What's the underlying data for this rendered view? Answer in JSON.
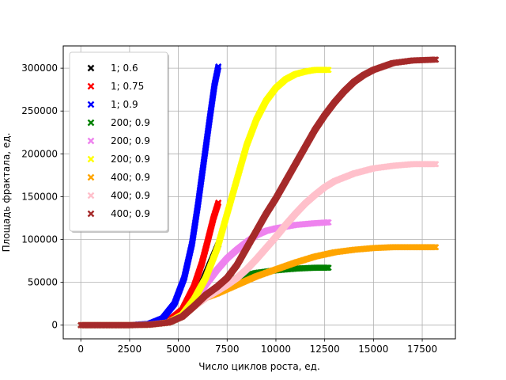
{
  "chart_data": {
    "type": "scatter",
    "xlabel": "Число циклов роста, ед.",
    "ylabel": "Площадь фрактала, ед.",
    "xlim": [
      -900,
      19200
    ],
    "ylim": [
      -16000,
      326000
    ],
    "xticks": [
      0,
      2500,
      5000,
      7500,
      10000,
      12500,
      15000,
      17500
    ],
    "yticks": [
      0,
      50000,
      100000,
      150000,
      200000,
      250000,
      300000
    ],
    "xtick_labels": [
      "0",
      "2500",
      "5000",
      "7500",
      "10000",
      "12500",
      "15000",
      "17500"
    ],
    "ytick_labels": [
      "0",
      "50000",
      "100000",
      "150000",
      "200000",
      "250000",
      "300000"
    ],
    "grid": true,
    "legend_position": "upper-left",
    "marker": "x",
    "series": [
      {
        "name": "1; 0.6",
        "color": "#000000",
        "points": [
          [
            0,
            0
          ],
          [
            2500,
            0
          ],
          [
            3500,
            500
          ],
          [
            4500,
            3000
          ],
          [
            5200,
            10000
          ],
          [
            5800,
            28000
          ],
          [
            6200,
            48000
          ],
          [
            6600,
            70000
          ],
          [
            6900,
            86000
          ],
          [
            7050,
            94000
          ]
        ]
      },
      {
        "name": "1; 0.75",
        "color": "#ff0000",
        "points": [
          [
            0,
            0
          ],
          [
            2500,
            0
          ],
          [
            3500,
            800
          ],
          [
            4500,
            5000
          ],
          [
            5200,
            18000
          ],
          [
            5800,
            45000
          ],
          [
            6200,
            72000
          ],
          [
            6500,
            98000
          ],
          [
            6800,
            125000
          ],
          [
            7050,
            143000
          ]
        ]
      },
      {
        "name": "1; 0.9",
        "color": "#0000ff",
        "points": [
          [
            0,
            0
          ],
          [
            2500,
            0
          ],
          [
            3500,
            1500
          ],
          [
            4200,
            8000
          ],
          [
            4800,
            25000
          ],
          [
            5300,
            55000
          ],
          [
            5700,
            95000
          ],
          [
            6000,
            140000
          ],
          [
            6300,
            190000
          ],
          [
            6600,
            240000
          ],
          [
            6850,
            280000
          ],
          [
            7050,
            302000
          ]
        ]
      },
      {
        "name": "200; 0.9",
        "color": "#008000",
        "points": [
          [
            0,
            0
          ],
          [
            2500,
            0
          ],
          [
            3500,
            500
          ],
          [
            4500,
            3000
          ],
          [
            5200,
            10000
          ],
          [
            5800,
            22000
          ],
          [
            6300,
            32000
          ],
          [
            7000,
            42000
          ],
          [
            7500,
            50000
          ],
          [
            8000,
            55000
          ],
          [
            8500,
            58000
          ],
          [
            9000,
            61000
          ],
          [
            10000,
            64000
          ],
          [
            11000,
            66000
          ],
          [
            12000,
            67000
          ],
          [
            12700,
            67000
          ]
        ]
      },
      {
        "name": "200; 0.9",
        "color": "#ee82ee",
        "points": [
          [
            0,
            0
          ],
          [
            2500,
            0
          ],
          [
            3500,
            500
          ],
          [
            4500,
            3000
          ],
          [
            5200,
            12000
          ],
          [
            5800,
            28000
          ],
          [
            6500,
            50000
          ],
          [
            7000,
            65000
          ],
          [
            7500,
            78000
          ],
          [
            8000,
            88000
          ],
          [
            8500,
            97000
          ],
          [
            9000,
            105000
          ],
          [
            9500,
            110000
          ],
          [
            10000,
            113000
          ],
          [
            11000,
            117000
          ],
          [
            12000,
            119000
          ],
          [
            12700,
            120000
          ]
        ]
      },
      {
        "name": "200; 0.9",
        "color": "#ffff00",
        "points": [
          [
            0,
            0
          ],
          [
            2500,
            0
          ],
          [
            3500,
            500
          ],
          [
            4500,
            3000
          ],
          [
            5200,
            12000
          ],
          [
            5800,
            30000
          ],
          [
            6400,
            55000
          ],
          [
            7000,
            90000
          ],
          [
            7500,
            130000
          ],
          [
            8000,
            170000
          ],
          [
            8500,
            210000
          ],
          [
            9000,
            240000
          ],
          [
            9500,
            262000
          ],
          [
            10000,
            277000
          ],
          [
            10500,
            287000
          ],
          [
            11000,
            293000
          ],
          [
            11500,
            296000
          ],
          [
            12000,
            298000
          ],
          [
            12700,
            298000
          ]
        ]
      },
      {
        "name": "400; 0.9",
        "color": "#ffa500",
        "points": [
          [
            0,
            0
          ],
          [
            2500,
            0
          ],
          [
            3500,
            500
          ],
          [
            4500,
            3000
          ],
          [
            5200,
            10000
          ],
          [
            5800,
            22000
          ],
          [
            6400,
            32000
          ],
          [
            7000,
            37000
          ],
          [
            7500,
            42000
          ],
          [
            8000,
            47000
          ],
          [
            9000,
            57000
          ],
          [
            10000,
            65000
          ],
          [
            11000,
            73000
          ],
          [
            12000,
            80000
          ],
          [
            13000,
            85000
          ],
          [
            14000,
            88000
          ],
          [
            15000,
            90000
          ],
          [
            16000,
            91000
          ],
          [
            17000,
            91000
          ],
          [
            18200,
            91000
          ]
        ]
      },
      {
        "name": "400; 0.9",
        "color": "#ffc0cb",
        "points": [
          [
            0,
            0
          ],
          [
            2500,
            0
          ],
          [
            3500,
            500
          ],
          [
            4500,
            3000
          ],
          [
            5200,
            10000
          ],
          [
            5800,
            22000
          ],
          [
            6400,
            32000
          ],
          [
            7000,
            40000
          ],
          [
            7500,
            47000
          ],
          [
            8000,
            55000
          ],
          [
            8500,
            65000
          ],
          [
            9000,
            77000
          ],
          [
            9500,
            90000
          ],
          [
            10000,
            103000
          ],
          [
            10500,
            117000
          ],
          [
            11000,
            130000
          ],
          [
            11500,
            142000
          ],
          [
            12000,
            152000
          ],
          [
            12500,
            161000
          ],
          [
            13000,
            168000
          ],
          [
            14000,
            177000
          ],
          [
            15000,
            183000
          ],
          [
            16000,
            186000
          ],
          [
            17000,
            188000
          ],
          [
            18200,
            188000
          ]
        ]
      },
      {
        "name": "400; 0.9",
        "color": "#a52a2a",
        "points": [
          [
            0,
            0
          ],
          [
            2500,
            0
          ],
          [
            3500,
            500
          ],
          [
            4500,
            3000
          ],
          [
            5200,
            10000
          ],
          [
            5800,
            22000
          ],
          [
            6400,
            35000
          ],
          [
            7000,
            45000
          ],
          [
            7500,
            55000
          ],
          [
            8000,
            70000
          ],
          [
            8500,
            90000
          ],
          [
            9000,
            110000
          ],
          [
            9500,
            130000
          ],
          [
            10000,
            148000
          ],
          [
            10500,
            168000
          ],
          [
            11000,
            188000
          ],
          [
            11500,
            208000
          ],
          [
            12000,
            228000
          ],
          [
            12500,
            245000
          ],
          [
            13000,
            260000
          ],
          [
            13500,
            273000
          ],
          [
            14000,
            284000
          ],
          [
            14500,
            292000
          ],
          [
            15000,
            298000
          ],
          [
            15500,
            302000
          ],
          [
            16000,
            306000
          ],
          [
            17000,
            309000
          ],
          [
            18200,
            310000
          ]
        ]
      }
    ]
  }
}
